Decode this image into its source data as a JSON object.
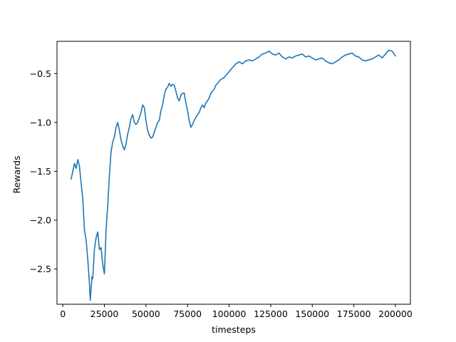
{
  "chart_data": {
    "type": "line",
    "title": "",
    "xlabel": "timesteps",
    "ylabel": "Rewards",
    "xlim": [
      -3500,
      209000
    ],
    "ylim": [
      -2.86,
      -0.17
    ],
    "grid": false,
    "legend": "none",
    "colors": {
      "line": "#1f77b4",
      "axes": "#000000",
      "background": "#ffffff"
    },
    "xticks": [
      {
        "value": 0,
        "label": "0"
      },
      {
        "value": 25000,
        "label": "25000"
      },
      {
        "value": 50000,
        "label": "50000"
      },
      {
        "value": 75000,
        "label": "75000"
      },
      {
        "value": 100000,
        "label": "100000"
      },
      {
        "value": 125000,
        "label": "125000"
      },
      {
        "value": 150000,
        "label": "150000"
      },
      {
        "value": 175000,
        "label": "175000"
      },
      {
        "value": 200000,
        "label": "200000"
      }
    ],
    "yticks": [
      {
        "value": -2.5,
        "label": "−2.5"
      },
      {
        "value": -2.0,
        "label": "−2.0"
      },
      {
        "value": -1.5,
        "label": "−1.5"
      },
      {
        "value": -1.0,
        "label": "−1.0"
      },
      {
        "value": -0.5,
        "label": "−0.5"
      }
    ],
    "series": [
      {
        "x": [
          5000,
          6000,
          7000,
          8000,
          9000,
          10000,
          11000,
          12000,
          13000,
          14000,
          15000,
          16000,
          16500,
          17000,
          17500,
          18000,
          19000,
          20000,
          21000,
          22000,
          23000,
          24000,
          25000,
          26000,
          27000,
          28000,
          29000,
          30000,
          31000,
          32000,
          33000,
          34000,
          35000,
          36000,
          37000,
          38000,
          39000,
          40000,
          41000,
          42000,
          43000,
          44000,
          45000,
          46000,
          47000,
          48000,
          49000,
          50000,
          51000,
          52000,
          53000,
          54000,
          55000,
          56000,
          57000,
          58000,
          59000,
          60000,
          61000,
          62000,
          63000,
          64000,
          65000,
          66000,
          67000,
          68000,
          69000,
          70000,
          71000,
          72000,
          73000,
          74000,
          75000,
          76000,
          77000,
          78000,
          79000,
          80000,
          81000,
          82000,
          83000,
          84000,
          85000,
          86000,
          87000,
          88000,
          89000,
          90000,
          91000,
          92000,
          93000,
          94000,
          95000,
          96000,
          97000,
          98000,
          99000,
          100000,
          102000,
          104000,
          106000,
          108000,
          110000,
          112000,
          114000,
          116000,
          118000,
          120000,
          122000,
          124000,
          126000,
          128000,
          130000,
          132000,
          134000,
          136000,
          138000,
          140000,
          142000,
          144000,
          146000,
          148000,
          150000,
          152000,
          154000,
          156000,
          158000,
          160000,
          162000,
          164000,
          166000,
          168000,
          170000,
          172000,
          174000,
          176000,
          178000,
          180000,
          182000,
          184000,
          186000,
          188000,
          190000,
          192000,
          194000,
          196000,
          198000,
          200000
        ],
        "y": [
          -1.58,
          -1.5,
          -1.42,
          -1.47,
          -1.38,
          -1.45,
          -1.62,
          -1.78,
          -2.1,
          -2.2,
          -2.4,
          -2.65,
          -2.82,
          -2.7,
          -2.58,
          -2.6,
          -2.3,
          -2.18,
          -2.12,
          -2.3,
          -2.28,
          -2.45,
          -2.55,
          -2.1,
          -1.85,
          -1.55,
          -1.3,
          -1.2,
          -1.15,
          -1.05,
          -1.0,
          -1.08,
          -1.18,
          -1.24,
          -1.28,
          -1.22,
          -1.12,
          -1.05,
          -0.96,
          -0.92,
          -1.0,
          -1.02,
          -1.0,
          -0.95,
          -0.9,
          -0.82,
          -0.85,
          -0.98,
          -1.08,
          -1.13,
          -1.16,
          -1.15,
          -1.1,
          -1.05,
          -1.0,
          -0.98,
          -0.88,
          -0.82,
          -0.72,
          -0.66,
          -0.64,
          -0.6,
          -0.63,
          -0.61,
          -0.62,
          -0.68,
          -0.75,
          -0.78,
          -0.72,
          -0.7,
          -0.7,
          -0.8,
          -0.88,
          -0.98,
          -1.05,
          -1.02,
          -0.98,
          -0.95,
          -0.92,
          -0.9,
          -0.85,
          -0.82,
          -0.85,
          -0.8,
          -0.78,
          -0.75,
          -0.7,
          -0.68,
          -0.66,
          -0.62,
          -0.6,
          -0.58,
          -0.56,
          -0.55,
          -0.54,
          -0.52,
          -0.5,
          -0.48,
          -0.44,
          -0.4,
          -0.38,
          -0.4,
          -0.37,
          -0.36,
          -0.37,
          -0.35,
          -0.33,
          -0.3,
          -0.29,
          -0.27,
          -0.3,
          -0.31,
          -0.29,
          -0.33,
          -0.35,
          -0.33,
          -0.34,
          -0.32,
          -0.31,
          -0.3,
          -0.33,
          -0.32,
          -0.34,
          -0.36,
          -0.35,
          -0.34,
          -0.37,
          -0.39,
          -0.4,
          -0.38,
          -0.36,
          -0.33,
          -0.31,
          -0.3,
          -0.29,
          -0.32,
          -0.33,
          -0.36,
          -0.37,
          -0.36,
          -0.35,
          -0.33,
          -0.31,
          -0.34,
          -0.3,
          -0.26,
          -0.27,
          -0.32
        ]
      }
    ]
  }
}
